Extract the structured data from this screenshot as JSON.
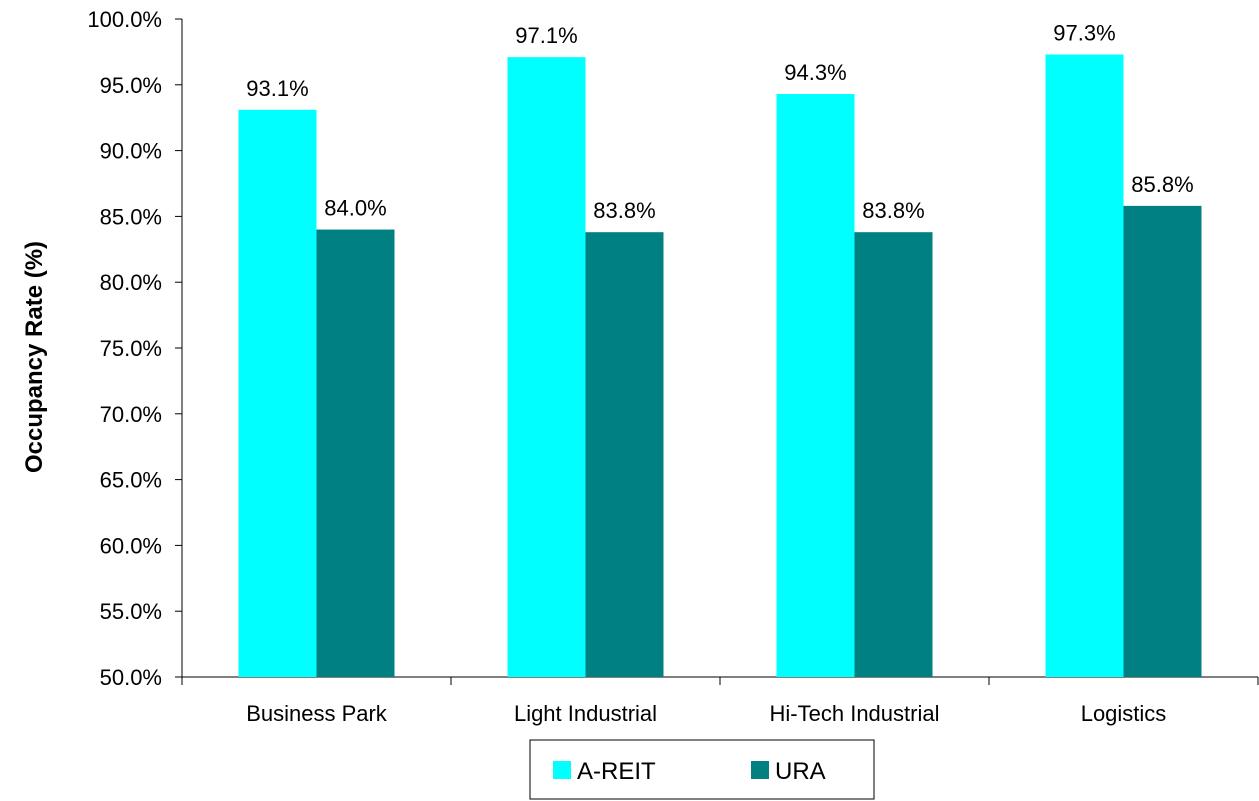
{
  "chart_data": {
    "type": "bar",
    "title": "",
    "xlabel": "",
    "ylabel": "Occupancy Rate (%)",
    "ylim": [
      50,
      100
    ],
    "ytick_step": 5,
    "ytick_format": "0.0%",
    "categories": [
      "Business Park",
      "Light Industrial",
      "Hi-Tech Industrial",
      "Logistics"
    ],
    "series": [
      {
        "name": "A-REIT",
        "color": "#00FFFF",
        "values": [
          93.1,
          97.1,
          94.3,
          97.3
        ],
        "labels": [
          "93.1%",
          "97.1%",
          "94.3%",
          "97.3%"
        ]
      },
      {
        "name": "URA",
        "color": "#008080",
        "values": [
          84.0,
          83.8,
          83.8,
          85.8
        ],
        "labels": [
          "84.0%",
          "83.8%",
          "83.8%",
          "85.8%"
        ]
      }
    ],
    "legend": "bottom",
    "grid": false
  }
}
